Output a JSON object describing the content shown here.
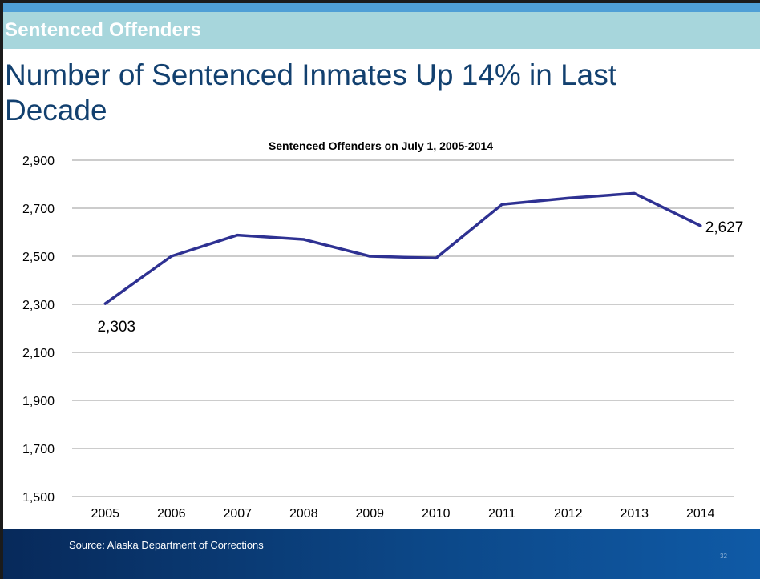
{
  "slide": {
    "section": "Sentenced Offenders",
    "title": "Number of Sentenced Inmates Up 14% in Last Decade",
    "source": "Source: Alaska Department of Corrections",
    "page_number": "32"
  },
  "colors": {
    "line": "#2e3192",
    "grid": "#9a9a9a",
    "title_text": "#12406f",
    "band": "#a7d6dc"
  },
  "chart_data": {
    "type": "line",
    "title": "Sentenced Offenders on July 1, 2005-2014",
    "xlabel": "",
    "ylabel": "",
    "categories": [
      "2005",
      "2006",
      "2007",
      "2008",
      "2009",
      "2010",
      "2011",
      "2012",
      "2013",
      "2014"
    ],
    "series": [
      {
        "values": [
          2303,
          2500,
          2588,
          2570,
          2500,
          2492,
          2716,
          2742,
          2762,
          2627
        ]
      }
    ],
    "ylim": [
      1500,
      2900
    ],
    "yticks": [
      1500,
      1700,
      1900,
      2100,
      2300,
      2500,
      2700,
      2900
    ],
    "ytick_labels": [
      "1,500",
      "1,700",
      "1,900",
      "2,100",
      "2,300",
      "2,500",
      "2,700",
      "2,900"
    ],
    "annotations": [
      {
        "index": 0,
        "text": "2,303"
      },
      {
        "index": 9,
        "text": "2,627"
      }
    ],
    "grid": true,
    "legend": "none"
  }
}
